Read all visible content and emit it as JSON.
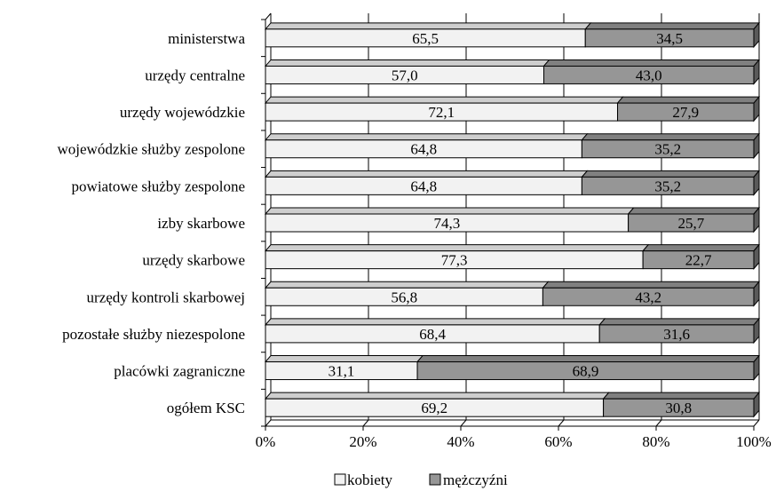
{
  "chart_data": {
    "type": "bar",
    "orientation": "horizontal",
    "stacked": true,
    "percent_stacked": true,
    "style": "3d",
    "categories": [
      "ministerstwa",
      "urzędy centralne",
      "urzędy wojewódzkie",
      "wojewódzkie służby zespolone",
      "powiatowe służby zespolone",
      "izby skarbowe",
      "urzędy skarbowe",
      "urzędy kontroli skarbowej",
      "pozostałe służby niezespolone",
      "placówki zagraniczne",
      "ogółem KSC"
    ],
    "series": [
      {
        "name": "kobiety",
        "color": "#f2f2f2",
        "values": [
          65.5,
          57.0,
          72.1,
          64.8,
          64.8,
          74.3,
          77.3,
          56.8,
          68.4,
          31.1,
          69.2
        ],
        "labels": [
          "65,5",
          "57,0",
          "72,1",
          "64,8",
          "64,8",
          "74,3",
          "77,3",
          "56,8",
          "68,4",
          "31,1",
          "69,2"
        ]
      },
      {
        "name": "mężczyźni",
        "color": "#969696",
        "values": [
          34.5,
          43.0,
          27.9,
          35.2,
          35.2,
          25.7,
          22.7,
          43.2,
          31.6,
          68.9,
          30.8
        ],
        "labels": [
          "34,5",
          "43,0",
          "27,9",
          "35,2",
          "35,2",
          "25,7",
          "22,7",
          "43,2",
          "31,6",
          "68,9",
          "30,8"
        ]
      }
    ],
    "x_ticks": [
      0,
      20,
      40,
      60,
      80,
      100
    ],
    "x_tick_labels": [
      "0%",
      "20%",
      "40%",
      "60%",
      "80%",
      "100%"
    ],
    "xlim": [
      0,
      100
    ],
    "grid": true,
    "legend_position": "bottom",
    "title": "",
    "xlabel": "",
    "ylabel": ""
  }
}
